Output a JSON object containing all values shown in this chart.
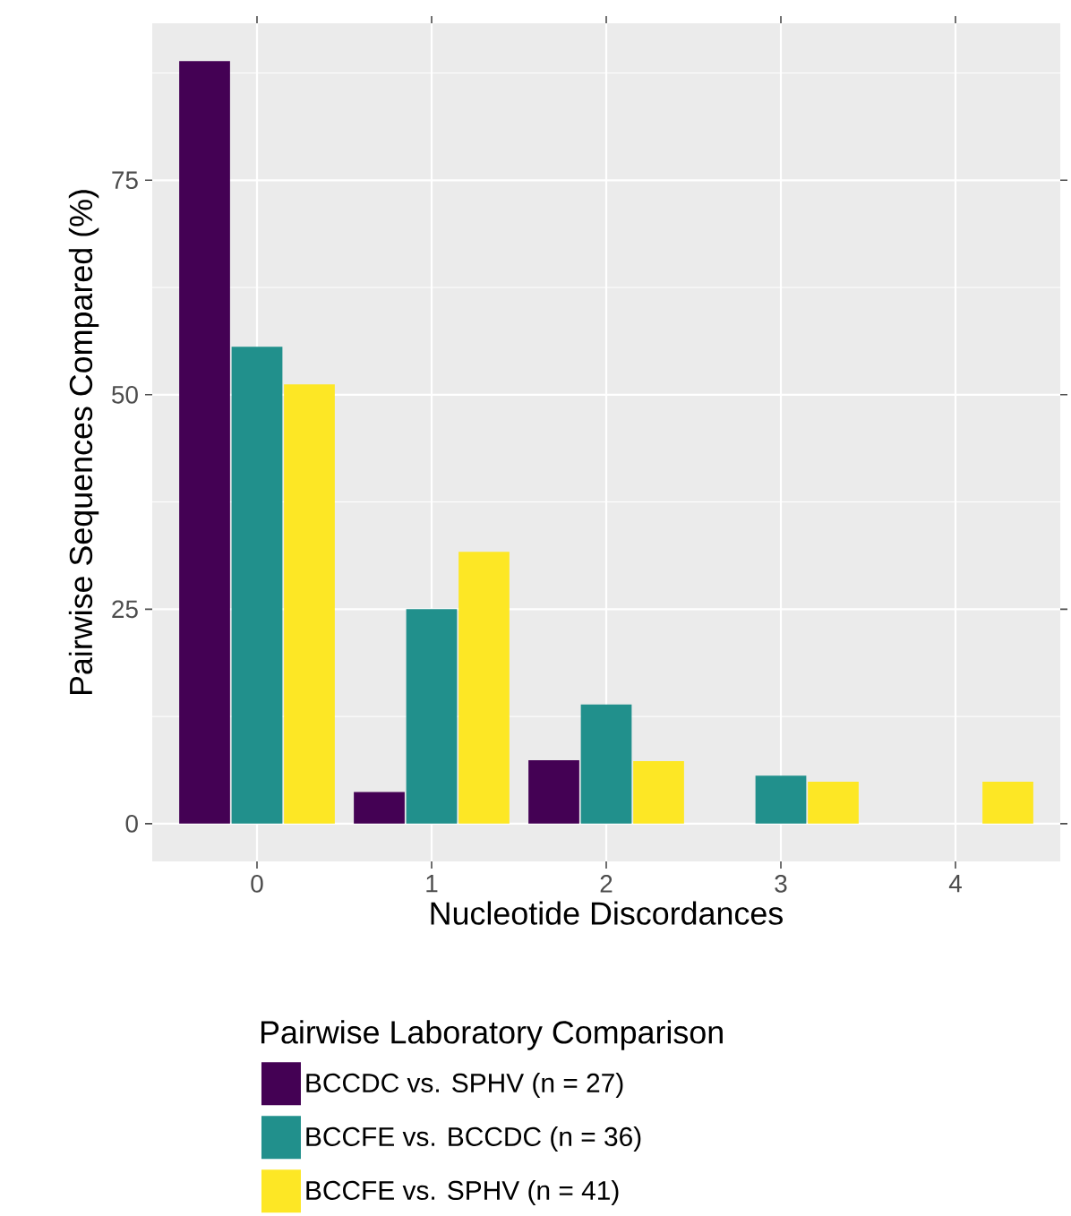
{
  "chart_data": {
    "type": "bar",
    "xlabel": "Nucleotide Discordances",
    "ylabel": "Pairwise Sequences Compared (%)",
    "legend_title": "Pairwise Laboratory Comparison",
    "categories": [
      "0",
      "1",
      "2",
      "3",
      "4"
    ],
    "series": [
      {
        "name": "BCCDC vs. SPHV (n = 27)",
        "color": "#440154",
        "values": [
          88.9,
          3.7,
          7.4,
          null,
          null
        ]
      },
      {
        "name": "BCCFE vs. BCCDC (n = 36)",
        "color": "#21908c",
        "values": [
          55.6,
          25.0,
          13.9,
          5.6,
          null
        ]
      },
      {
        "name": "BCCFE vs. SPHV (n = 41)",
        "color": "#fde725",
        "values": [
          51.2,
          31.7,
          7.3,
          4.9,
          4.9
        ]
      }
    ],
    "ylim": [
      -4.4,
      93.3
    ],
    "yticks": [
      0,
      25,
      50,
      75
    ],
    "grid": true,
    "legend": "bottom"
  }
}
